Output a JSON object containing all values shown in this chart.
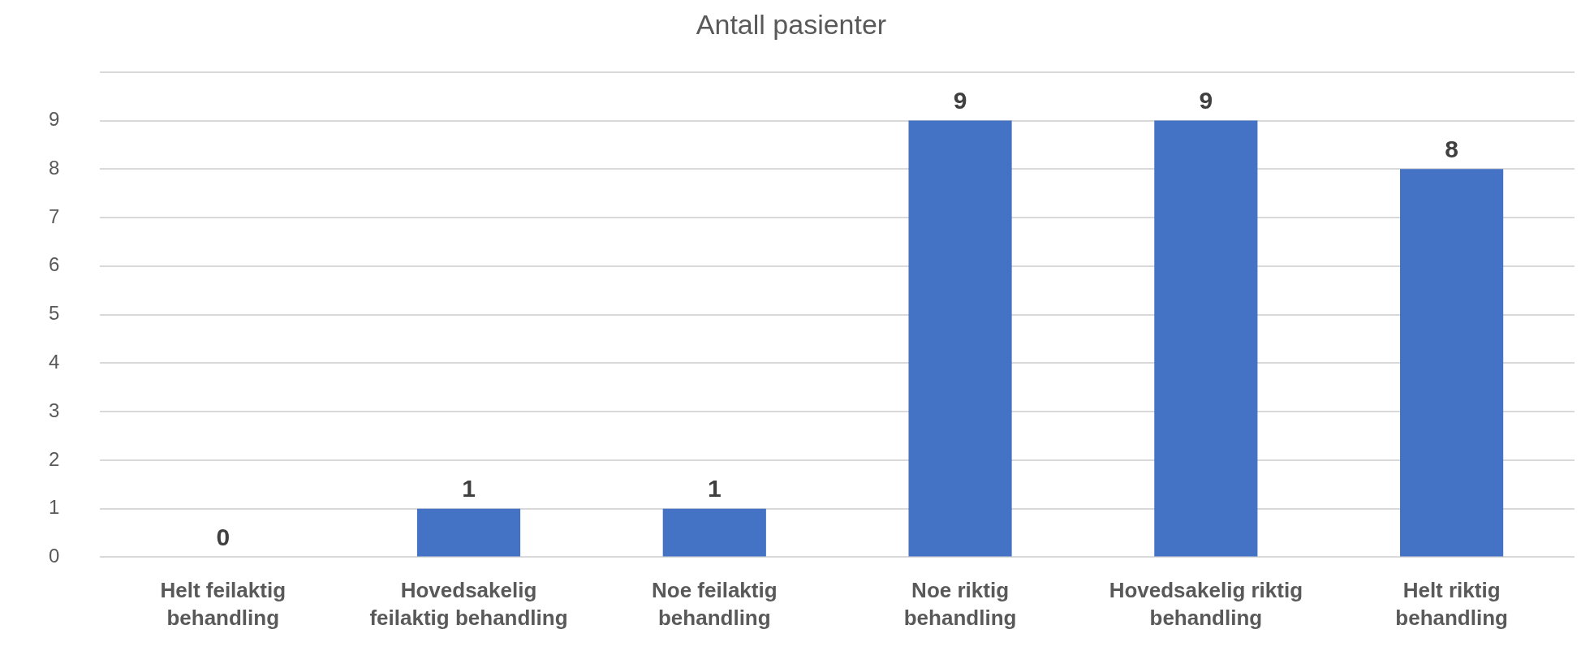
{
  "chart_data": {
    "type": "bar",
    "title": "Antall pasienter",
    "categories": [
      "Helt feilaktig behandling",
      "Hovedsakelig feilaktig behandling",
      "Noe feilaktig behandling",
      "Noe riktig behandling",
      "Hovedsakelig riktig behandling",
      "Helt riktig behandling"
    ],
    "values": [
      0,
      1,
      1,
      9,
      9,
      8
    ],
    "color": "#4472c4",
    "ylim": [
      0,
      10
    ],
    "yticks": [
      0,
      1,
      2,
      3,
      4,
      5,
      6,
      7,
      8,
      9,
      {
        "value": 10,
        "label": null
      }
    ],
    "grid": "y",
    "data_labels": true
  }
}
